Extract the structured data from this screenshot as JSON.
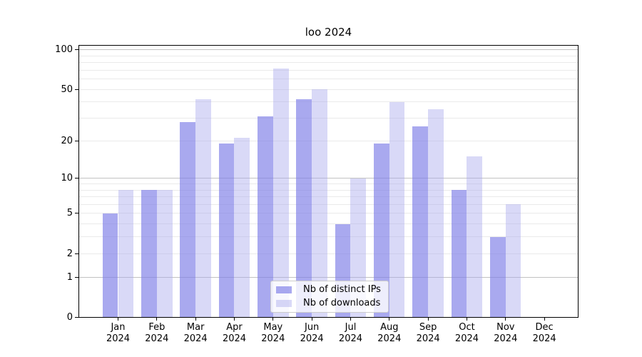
{
  "chart_data": {
    "type": "bar",
    "title": "loo 2024",
    "categories": [
      "Jan",
      "Feb",
      "Mar",
      "Apr",
      "May",
      "Jun",
      "Jul",
      "Aug",
      "Sep",
      "Oct",
      "Nov",
      "Dec"
    ],
    "xtick_year": "2024",
    "series": [
      {
        "name": "Nb of distinct IPs",
        "color": "rgba(128,128,232,0.68)",
        "values": [
          5,
          8,
          28,
          19,
          31,
          42,
          4,
          19,
          26,
          8,
          3,
          0
        ]
      },
      {
        "name": "Nb of downloads",
        "color": "rgba(170,170,238,0.45)",
        "values": [
          8,
          8,
          42,
          21,
          72,
          50,
          10,
          40,
          35,
          15,
          6,
          0
        ]
      }
    ],
    "yticks": [
      0,
      1,
      2,
      5,
      10,
      20,
      50,
      100
    ],
    "scale": "log10(1+y)",
    "ylim": [
      0,
      109
    ],
    "grid": {
      "major": [
        1,
        10,
        100
      ],
      "minor": [
        2,
        3,
        4,
        5,
        6,
        7,
        8,
        9,
        20,
        30,
        40,
        50,
        60,
        70,
        80,
        90
      ]
    },
    "legend_position": "bottom-center",
    "xlabel": "",
    "ylabel": ""
  }
}
